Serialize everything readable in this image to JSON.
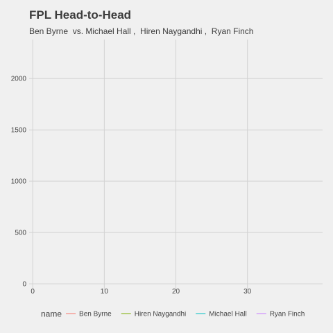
{
  "title": "FPL Head-to-Head",
  "subtitle": "Ben Byrne  vs. Michael Hall ,  Hiren Naygandhi ,  Ryan Finch",
  "chart_data": {
    "type": "line",
    "title": "FPL Head-to-Head",
    "subtitle": "Ben Byrne  vs. Michael Hall ,  Hiren Naygandhi ,  Ryan Finch",
    "xlabel": "",
    "ylabel": "",
    "xlim": [
      -0.5,
      40.5
    ],
    "ylim": [
      -60,
      2380
    ],
    "x_ticks": [
      0,
      10,
      20,
      30
    ],
    "y_ticks": [
      0,
      500,
      1000,
      1500,
      2000
    ],
    "grid": true,
    "legend_position": "bottom",
    "legend_title": "name",
    "series": [
      {
        "name": "Ben Byrne",
        "color": "#f8766d",
        "x": [],
        "y": []
      },
      {
        "name": "Hiren Naygandhi",
        "color": "#7cae00",
        "x": [],
        "y": []
      },
      {
        "name": "Michael Hall",
        "color": "#00bfc4",
        "x": [],
        "y": []
      },
      {
        "name": "Ryan Finch",
        "color": "#c77cff",
        "x": [],
        "y": []
      }
    ]
  }
}
